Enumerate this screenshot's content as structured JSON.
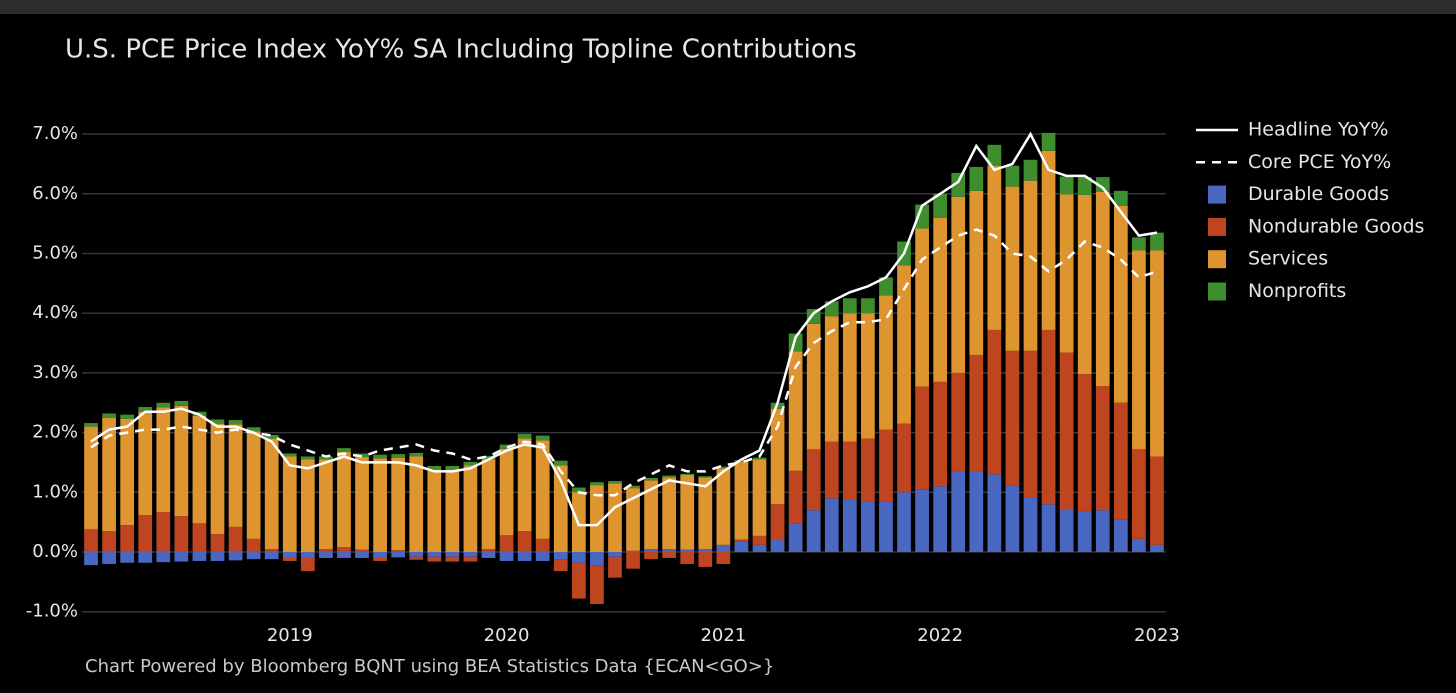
{
  "chart_data": {
    "type": "bar",
    "stacked": true,
    "title": "U.S. PCE Price Index YoY% SA Including Topline Contributions",
    "footer": "Chart Powered by Bloomberg BQNT using BEA Statistics Data    {ECAN<GO>}",
    "categories": [
      null,
      null,
      null,
      null,
      null,
      null,
      null,
      null,
      null,
      null,
      null,
      "2019",
      null,
      null,
      null,
      null,
      null,
      null,
      null,
      null,
      null,
      null,
      null,
      "2020",
      null,
      null,
      null,
      null,
      null,
      null,
      null,
      null,
      null,
      null,
      null,
      "2021",
      null,
      null,
      null,
      null,
      null,
      null,
      null,
      null,
      null,
      null,
      null,
      "2022",
      null,
      null,
      null,
      null,
      null,
      null,
      null,
      null,
      null,
      null,
      null,
      "2023"
    ],
    "ylim": [
      -1.1,
      7.35
    ],
    "yticks": [
      {
        "value": -1,
        "label": "-1.0%"
      },
      {
        "value": 0,
        "label": "0.0%"
      },
      {
        "value": 1,
        "label": "1.0%"
      },
      {
        "value": 2,
        "label": "2.0%"
      },
      {
        "value": 3,
        "label": "3.0%"
      },
      {
        "value": 4,
        "label": "4.0%"
      },
      {
        "value": 5,
        "label": "5.0%"
      },
      {
        "value": 6,
        "label": "6.0%"
      },
      {
        "value": 7,
        "label": "7.0%"
      }
    ],
    "grid": true,
    "legend": "right",
    "series": [
      {
        "name": "Durable Goods",
        "type": "bar",
        "color": "#4a68c2",
        "values": [
          -0.22,
          -0.2,
          -0.18,
          -0.18,
          -0.17,
          -0.16,
          -0.15,
          -0.15,
          -0.14,
          -0.12,
          -0.12,
          -0.1,
          -0.1,
          -0.1,
          -0.1,
          -0.1,
          -0.1,
          -0.09,
          -0.08,
          -0.08,
          -0.08,
          -0.08,
          -0.1,
          -0.15,
          -0.15,
          -0.15,
          -0.12,
          -0.18,
          -0.22,
          -0.08,
          0.02,
          0.05,
          0.05,
          0.04,
          0.05,
          0.12,
          0.18,
          0.12,
          0.2,
          0.48,
          0.7,
          0.9,
          0.88,
          0.85,
          0.85,
          1.0,
          1.05,
          1.1,
          1.35,
          1.35,
          1.3,
          1.12,
          0.92,
          0.8,
          0.72,
          0.68,
          0.7,
          0.55,
          0.22,
          0.12
        ]
      },
      {
        "name": "Nondurable Goods",
        "type": "bar",
        "color": "#bf4420",
        "values": [
          0.38,
          0.35,
          0.45,
          0.62,
          0.67,
          0.6,
          0.48,
          0.3,
          0.42,
          0.22,
          0.05,
          -0.05,
          -0.22,
          0.05,
          0.08,
          0.04,
          -0.05,
          0.03,
          -0.05,
          -0.08,
          -0.08,
          -0.08,
          0.05,
          0.28,
          0.35,
          0.22,
          -0.2,
          -0.6,
          -0.65,
          -0.35,
          -0.28,
          -0.12,
          -0.1,
          -0.2,
          -0.25,
          -0.2,
          0.03,
          0.15,
          0.6,
          0.88,
          1.02,
          0.95,
          0.97,
          1.05,
          1.2,
          1.15,
          1.72,
          1.75,
          1.65,
          1.95,
          2.42,
          2.25,
          2.45,
          2.92,
          2.62,
          2.3,
          2.08,
          1.95,
          1.5,
          1.48
        ]
      },
      {
        "name": "Services",
        "type": "bar",
        "color": "#df952f",
        "values": [
          1.72,
          1.9,
          1.78,
          1.73,
          1.75,
          1.85,
          1.8,
          1.85,
          1.72,
          1.8,
          1.85,
          1.6,
          1.55,
          1.5,
          1.6,
          1.55,
          1.57,
          1.55,
          1.6,
          1.38,
          1.38,
          1.45,
          1.5,
          1.45,
          1.55,
          1.65,
          1.45,
          1.0,
          1.12,
          1.15,
          1.05,
          1.15,
          1.2,
          1.25,
          1.2,
          1.28,
          1.3,
          1.28,
          1.6,
          2.0,
          2.1,
          2.1,
          2.15,
          2.1,
          2.25,
          2.65,
          2.65,
          2.75,
          2.95,
          2.75,
          2.75,
          2.75,
          2.85,
          3.0,
          2.65,
          3.0,
          3.25,
          3.3,
          3.33,
          3.45
        ]
      },
      {
        "name": "Nonprofits",
        "type": "bar",
        "color": "#3e8d2e",
        "values": [
          0.06,
          0.07,
          0.07,
          0.08,
          0.08,
          0.08,
          0.07,
          0.07,
          0.07,
          0.07,
          0.06,
          0.05,
          0.05,
          0.05,
          0.06,
          0.06,
          0.06,
          0.06,
          0.06,
          0.06,
          0.06,
          0.06,
          0.06,
          0.07,
          0.08,
          0.08,
          0.08,
          0.08,
          0.05,
          0.04,
          0.04,
          0.04,
          0.03,
          0.02,
          0.02,
          0.03,
          0.03,
          0.03,
          0.1,
          0.3,
          0.25,
          0.25,
          0.25,
          0.25,
          0.3,
          0.4,
          0.4,
          0.4,
          0.4,
          0.4,
          0.35,
          0.35,
          0.35,
          0.3,
          0.3,
          0.3,
          0.25,
          0.25,
          0.22,
          0.3
        ]
      },
      {
        "name": "Headline YoY%",
        "type": "line",
        "color": "#ffffff",
        "values": [
          1.85,
          2.05,
          2.1,
          2.35,
          2.35,
          2.4,
          2.3,
          2.1,
          2.1,
          2.0,
          1.85,
          1.45,
          1.4,
          1.5,
          1.6,
          1.5,
          1.5,
          1.5,
          1.45,
          1.35,
          1.35,
          1.4,
          1.55,
          1.7,
          1.8,
          1.75,
          1.2,
          0.45,
          0.45,
          0.75,
          0.9,
          1.05,
          1.2,
          1.15,
          1.1,
          1.35,
          1.55,
          1.7,
          2.5,
          3.6,
          4.0,
          4.2,
          4.35,
          4.45,
          4.6,
          5.0,
          5.8,
          6.0,
          6.2,
          6.8,
          6.4,
          6.5,
          7.0,
          6.4,
          6.3,
          6.3,
          6.1,
          5.7,
          5.3,
          5.35
        ]
      },
      {
        "name": "Core PCE YoY%",
        "type": "line",
        "dashed": true,
        "color": "#ffffff",
        "values": [
          1.75,
          1.95,
          2.0,
          2.05,
          2.05,
          2.1,
          2.05,
          2.0,
          2.05,
          2.0,
          1.95,
          1.8,
          1.7,
          1.6,
          1.65,
          1.6,
          1.7,
          1.75,
          1.8,
          1.7,
          1.65,
          1.55,
          1.6,
          1.75,
          1.85,
          1.8,
          1.35,
          1.0,
          0.95,
          0.95,
          1.15,
          1.3,
          1.45,
          1.35,
          1.35,
          1.45,
          1.5,
          1.6,
          2.1,
          3.1,
          3.5,
          3.7,
          3.85,
          3.85,
          3.9,
          4.4,
          4.9,
          5.1,
          5.3,
          5.4,
          5.3,
          5.0,
          4.95,
          4.7,
          4.9,
          5.2,
          5.1,
          4.9,
          4.6,
          4.7
        ]
      }
    ]
  }
}
